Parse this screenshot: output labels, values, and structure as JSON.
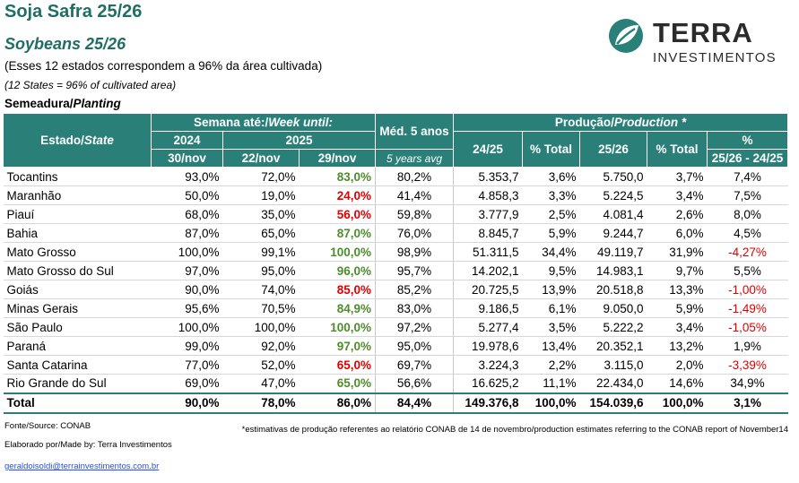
{
  "header": {
    "title": "Soja Safra 25/26",
    "subtitle": "Soybeans 25/26",
    "note_pt": "(Esses 12 estados correspondem a 96% da área cultivada)",
    "note_en": "(12 States = 96% of cultivated area)",
    "section_pt": "Semeadura/",
    "section_en": "Planting"
  },
  "logo": {
    "name": "TERRA",
    "sub": "INVESTIMENTOS",
    "color": "#2a8079"
  },
  "table": {
    "head": {
      "state_pt": "Estado/",
      "state_en": "State",
      "week_pt": "Semana até:/",
      "week_en": "Week until:",
      "year_prev": "2024",
      "year_cur": "2025",
      "date_prev": "30/nov",
      "date_1": "22/nov",
      "date_2": "29/nov",
      "media_pt": "Méd. 5 anos",
      "media_en": "5 years avg",
      "prod_pt": "Produção/",
      "prod_en": "Production *",
      "col_2425": "24/25",
      "col_pct_total_1": "% Total",
      "col_2526": "25/26",
      "col_pct_total_2": "% Total",
      "col_pct": "%",
      "col_pct_range": "25/26 - 24/25"
    },
    "rows": [
      {
        "state": "Tocantins",
        "p2024": "93,0%",
        "p22": "72,0%",
        "p29": "83,0%",
        "avg": "80,2%",
        "prod2425": "5.353,7",
        "pct1": "3,6%",
        "prod2526": "5.750,0",
        "pct2": "3,7%",
        "var": "7,4%"
      },
      {
        "state": "Maranhão",
        "p2024": "50,0%",
        "p22": "19,0%",
        "p29": "24,0%",
        "avg": "41,4%",
        "prod2425": "4.858,3",
        "pct1": "3,3%",
        "prod2526": "5.224,5",
        "pct2": "3,4%",
        "var": "7,5%"
      },
      {
        "state": "Piauí",
        "p2024": "68,0%",
        "p22": "35,0%",
        "p29": "56,0%",
        "avg": "59,8%",
        "prod2425": "3.777,9",
        "pct1": "2,5%",
        "prod2526": "4.081,4",
        "pct2": "2,6%",
        "var": "8,0%"
      },
      {
        "state": "Bahia",
        "p2024": "87,0%",
        "p22": "65,0%",
        "p29": "87,0%",
        "avg": "76,0%",
        "prod2425": "8.845,7",
        "pct1": "5,9%",
        "prod2526": "9.244,7",
        "pct2": "6,0%",
        "var": "4,5%"
      },
      {
        "state": "Mato Grosso",
        "p2024": "100,0%",
        "p22": "99,1%",
        "p29": "100,0%",
        "avg": "98,9%",
        "prod2425": "51.311,5",
        "pct1": "34,4%",
        "prod2526": "49.119,7",
        "pct2": "31,9%",
        "var": "-4,27%"
      },
      {
        "state": "Mato Grosso do Sul",
        "p2024": "97,0%",
        "p22": "95,0%",
        "p29": "96,0%",
        "avg": "95,7%",
        "prod2425": "14.202,1",
        "pct1": "9,5%",
        "prod2526": "14.983,1",
        "pct2": "9,7%",
        "var": "5,5%"
      },
      {
        "state": "Goiás",
        "p2024": "90,0%",
        "p22": "74,0%",
        "p29": "85,0%",
        "avg": "85,2%",
        "prod2425": "20.725,5",
        "pct1": "13,9%",
        "prod2526": "20.518,8",
        "pct2": "13,3%",
        "var": "-1,00%"
      },
      {
        "state": "Minas Gerais",
        "p2024": "95,6%",
        "p22": "70,5%",
        "p29": "84,9%",
        "avg": "83,0%",
        "prod2425": "9.186,5",
        "pct1": "6,1%",
        "prod2526": "9.050,0",
        "pct2": "5,9%",
        "var": "-1,49%"
      },
      {
        "state": "São Paulo",
        "p2024": "100,0%",
        "p22": "100,0%",
        "p29": "100,0%",
        "avg": "97,2%",
        "prod2425": "5.277,4",
        "pct1": "3,5%",
        "prod2526": "5.222,2",
        "pct2": "3,4%",
        "var": "-1,05%"
      },
      {
        "state": "Paraná",
        "p2024": "99,0%",
        "p22": "92,0%",
        "p29": "97,0%",
        "avg": "95,0%",
        "prod2425": "19.978,6",
        "pct1": "13,4%",
        "prod2526": "20.352,1",
        "pct2": "13,2%",
        "var": "1,9%"
      },
      {
        "state": "Santa Catarina",
        "p2024": "77,0%",
        "p22": "52,0%",
        "p29": "65,0%",
        "avg": "69,7%",
        "prod2425": "3.224,3",
        "pct1": "2,2%",
        "prod2526": "3.115,0",
        "pct2": "2,0%",
        "var": "-3,39%"
      },
      {
        "state": "Rio Grande do Sul",
        "p2024": "69,0%",
        "p22": "47,0%",
        "p29": "65,0%",
        "avg": "56,6%",
        "prod2425": "16.625,2",
        "pct1": "11,1%",
        "prod2526": "22.434,0",
        "pct2": "14,6%",
        "var": "34,9%"
      }
    ],
    "total": {
      "state": "Total",
      "p2024": "90,0%",
      "p22": "78,0%",
      "p29": "86,0%",
      "avg": "84,4%",
      "prod2425": "149.376,8",
      "pct1": "100,0%",
      "prod2526": "154.039,6",
      "pct2": "100,0%",
      "var": "3,1%"
    },
    "colors": {
      "header_bg": "#2a8079",
      "green": "#4e8c2c",
      "red": "#e00000"
    }
  },
  "footer": {
    "source": "Fonte/Source: CONAB",
    "made_by": "Elaborado por/Made by: Terra Investimentos",
    "email": "geraldoisoldi@terrainvestimentos.com.br",
    "footnote": "*estimativas de produção referentes ao relatório CONAB de 14 de novembro/production estimates referring to the CONAB report of November14"
  }
}
